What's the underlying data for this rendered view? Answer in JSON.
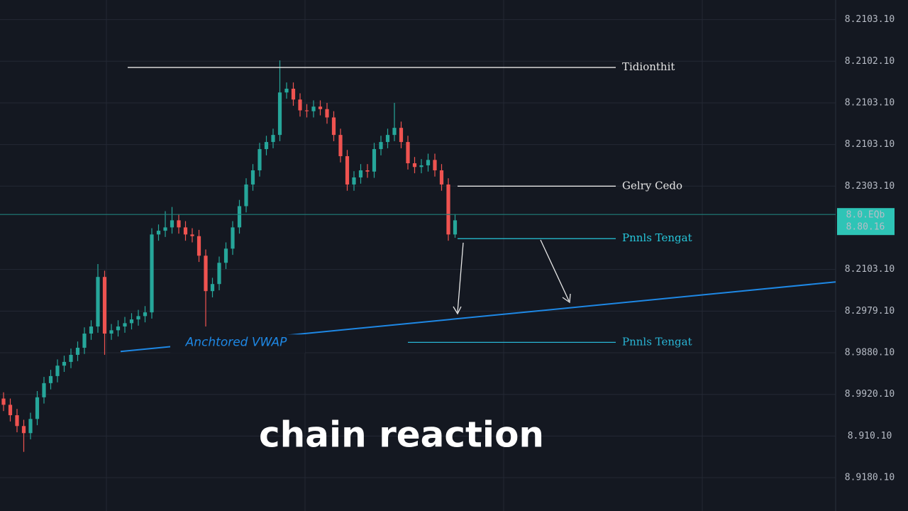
{
  "chart_data": {
    "type": "candlestick",
    "caption": "chain reaction",
    "ylim": [
      -0.8,
      11.47
    ],
    "yticks": [
      {
        "value": 11,
        "label": "8.2103.10"
      },
      {
        "value": 10,
        "label": "8.2102.10"
      },
      {
        "value": 9,
        "label": "8.2103.10"
      },
      {
        "value": 8,
        "label": "8.2103.10"
      },
      {
        "value": 7,
        "label": "8.2303.10"
      },
      {
        "value": 5,
        "label": "8.2103.10"
      },
      {
        "value": 4,
        "label": "8.2979.10"
      },
      {
        "value": 3,
        "label": "8.9880.10"
      },
      {
        "value": 2,
        "label": "8.9920.10"
      },
      {
        "value": 1,
        "label": "8.910.10"
      },
      {
        "value": 0,
        "label": "8.9180.10"
      }
    ],
    "grid": true,
    "up_color": "#26a69a",
    "down_color": "#ef5350",
    "open": [
      1.9,
      1.75,
      1.5,
      1.24,
      1.07,
      1.41,
      1.93,
      2.27,
      2.44,
      2.69,
      2.78,
      2.95,
      3.12,
      3.46,
      3.63,
      4.82,
      3.46,
      3.54,
      3.63,
      3.71,
      3.8,
      3.88,
      3.97,
      5.84,
      5.93,
      6.01,
      6.18,
      6.01,
      5.84,
      5.8,
      5.33,
      4.48,
      4.65,
      5.16,
      5.5,
      6.01,
      6.52,
      7.04,
      7.38,
      7.89,
      8.06,
      8.23,
      9.25,
      9.34,
      9.08,
      8.82,
      8.8,
      8.91,
      8.85,
      8.65,
      8.23,
      7.72,
      7.04,
      7.21,
      7.38,
      7.35,
      7.89,
      8.06,
      8.23,
      8.4,
      8.06,
      7.55,
      7.46,
      7.5,
      7.63,
      7.38,
      7.04,
      5.84
    ],
    "high": [
      2.05,
      1.9,
      1.65,
      1.39,
      1.56,
      2.08,
      2.42,
      2.59,
      2.84,
      2.93,
      3.1,
      3.27,
      3.61,
      3.78,
      5.13,
      4.97,
      3.69,
      3.78,
      3.86,
      3.95,
      4.03,
      4.12,
      5.99,
      6.08,
      6.4,
      6.5,
      6.33,
      6.16,
      5.99,
      5.95,
      5.48,
      4.8,
      5.31,
      5.65,
      6.16,
      6.67,
      7.19,
      7.53,
      8.04,
      8.21,
      8.38,
      10.02,
      9.49,
      9.49,
      9.23,
      8.97,
      9.06,
      9.06,
      9.0,
      8.8,
      8.38,
      7.87,
      7.36,
      7.53,
      7.53,
      8.04,
      8.21,
      8.38,
      9.0,
      8.55,
      8.21,
      7.7,
      7.65,
      7.78,
      7.78,
      7.53,
      7.19,
      6.33
    ],
    "low": [
      1.6,
      1.35,
      1.09,
      0.62,
      0.92,
      1.26,
      1.78,
      2.12,
      2.29,
      2.54,
      2.63,
      2.8,
      2.97,
      3.31,
      3.48,
      2.95,
      3.31,
      3.39,
      3.48,
      3.56,
      3.65,
      3.73,
      3.82,
      5.69,
      5.78,
      5.86,
      5.86,
      5.69,
      5.65,
      5.18,
      3.63,
      4.33,
      4.5,
      5.01,
      5.35,
      5.86,
      6.37,
      6.89,
      7.23,
      7.74,
      7.91,
      8.08,
      9.1,
      8.93,
      8.67,
      8.65,
      8.65,
      8.7,
      8.5,
      8.08,
      7.57,
      6.89,
      6.89,
      7.06,
      7.2,
      7.2,
      7.74,
      7.91,
      8.08,
      7.91,
      7.4,
      7.31,
      7.31,
      7.35,
      7.23,
      6.89,
      5.69,
      5.76
    ],
    "close": [
      1.75,
      1.5,
      1.24,
      1.07,
      1.41,
      1.93,
      2.27,
      2.44,
      2.69,
      2.78,
      2.95,
      3.12,
      3.46,
      3.63,
      4.82,
      3.46,
      3.54,
      3.63,
      3.71,
      3.8,
      3.88,
      3.97,
      5.84,
      5.93,
      6.01,
      6.18,
      6.01,
      5.84,
      5.8,
      5.33,
      4.48,
      4.65,
      5.16,
      5.5,
      6.01,
      6.52,
      7.04,
      7.38,
      7.89,
      8.06,
      8.23,
      9.25,
      9.34,
      9.08,
      8.82,
      8.8,
      8.91,
      8.85,
      8.65,
      8.23,
      7.72,
      7.04,
      7.21,
      7.38,
      7.35,
      7.89,
      8.06,
      8.23,
      8.4,
      8.06,
      7.55,
      7.46,
      7.5,
      7.63,
      7.38,
      7.04,
      5.84,
      6.18
    ],
    "levels": [
      {
        "label": "Tidionthit",
        "value": 9.85,
        "color": "#e6e6e6"
      },
      {
        "label": "Gelry Cedo",
        "value": 7.0,
        "color": "#e6e6e6"
      },
      {
        "label": "Pnnls Tengat",
        "value": 5.74,
        "color": "#26c6da"
      },
      {
        "label": "Pnnls Tengat",
        "value": 3.25,
        "color": "#29b6d6"
      }
    ],
    "current_price": {
      "value": 6.32,
      "label": [
        "8.0.EQb",
        "8.80.16"
      ],
      "color": "#2ec4b6"
    },
    "vwap": {
      "label": "Anchtored VWAP",
      "values": [
        3.03,
        4.7
      ],
      "color": "#1e88e5"
    }
  }
}
